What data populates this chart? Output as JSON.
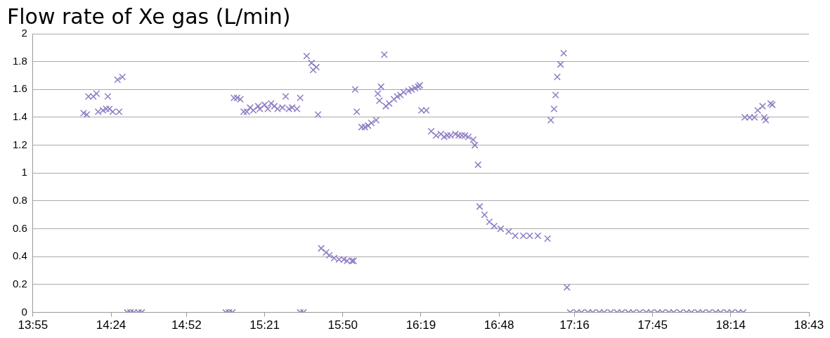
{
  "chart_data": {
    "type": "scatter",
    "title": "Flow rate of Xe gas (L/min)",
    "series": [
      {
        "color": "#8e7cc3",
        "x": [
          14.23,
          14.25,
          14.26,
          14.29,
          14.31,
          14.32,
          14.35,
          14.37,
          14.38,
          14.39,
          14.41,
          14.44,
          14.45,
          14.47,
          14.5,
          14.52,
          14.54,
          14.57,
          14.59,
          15.11,
          15.13,
          15.15,
          15.16,
          15.18,
          15.2,
          15.22,
          15.24,
          15.26,
          15.28,
          15.31,
          15.32,
          15.35,
          15.37,
          15.39,
          15.41,
          15.43,
          15.46,
          15.48,
          15.5,
          15.52,
          15.55,
          15.57,
          15.57,
          15.59,
          15.61,
          15.64,
          15.65,
          15.67,
          15.68,
          15.7,
          15.73,
          15.75,
          15.78,
          15.81,
          15.84,
          15.86,
          15.89,
          15.9,
          15.91,
          15.92,
          15.95,
          15.97,
          15.99,
          16.01,
          16.04,
          16.05,
          16.06,
          16.07,
          16.09,
          16.1,
          16.12,
          16.15,
          16.17,
          16.19,
          16.21,
          16.24,
          16.26,
          16.28,
          16.3,
          16.31,
          16.32,
          16.35,
          16.38,
          16.41,
          16.44,
          16.46,
          16.48,
          16.5,
          16.53,
          16.55,
          16.57,
          16.59,
          16.61,
          16.64,
          16.65,
          16.67,
          16.68,
          16.71,
          16.74,
          16.77,
          16.81,
          16.86,
          16.9,
          16.95,
          16.99,
          17.04,
          17.1,
          17.12,
          17.14,
          17.15,
          17.16,
          17.18,
          17.2,
          17.22,
          17.24,
          17.28,
          17.31,
          17.35,
          17.38,
          17.42,
          17.45,
          17.49,
          17.53,
          17.56,
          17.6,
          17.63,
          17.67,
          17.71,
          17.74,
          17.78,
          17.81,
          17.85,
          17.88,
          17.92,
          17.96,
          17.99,
          18.03,
          18.06,
          18.1,
          18.14,
          18.17,
          18.21,
          18.24,
          18.28,
          18.31,
          18.32,
          18.35,
          18.38,
          18.4,
          18.43,
          18.44,
          18.45,
          18.48,
          18.49
        ],
        "values": [
          1.43,
          1.42,
          1.55,
          1.55,
          1.57,
          1.44,
          1.45,
          1.46,
          1.55,
          1.46,
          1.44,
          1.67,
          1.44,
          1.69,
          0,
          0,
          0,
          0,
          0,
          0,
          0,
          0,
          1.54,
          1.54,
          1.53,
          1.44,
          1.44,
          1.47,
          1.45,
          1.48,
          1.46,
          1.49,
          1.46,
          1.5,
          1.48,
          1.46,
          1.47,
          1.55,
          1.46,
          1.47,
          1.46,
          1.54,
          0,
          0,
          1.84,
          1.79,
          1.74,
          1.76,
          1.42,
          0.46,
          0.43,
          0.41,
          0.39,
          0.38,
          0.38,
          0.37,
          0.37,
          0.37,
          1.6,
          1.44,
          1.33,
          1.33,
          1.34,
          1.36,
          1.38,
          1.57,
          1.52,
          1.62,
          1.85,
          1.48,
          1.5,
          1.53,
          1.55,
          1.56,
          1.58,
          1.59,
          1.6,
          1.61,
          1.62,
          1.63,
          1.45,
          1.45,
          1.3,
          1.27,
          1.28,
          1.26,
          1.27,
          1.27,
          1.28,
          1.27,
          1.27,
          1.27,
          1.26,
          1.24,
          1.2,
          1.06,
          0.76,
          0.7,
          0.65,
          0.62,
          0.6,
          0.58,
          0.55,
          0.55,
          0.55,
          0.55,
          0.53,
          1.38,
          1.46,
          1.56,
          1.69,
          1.78,
          1.86,
          0.18,
          0,
          0,
          0,
          0,
          0,
          0,
          0,
          0,
          0,
          0,
          0,
          0,
          0,
          0,
          0,
          0,
          0,
          0,
          0,
          0,
          0,
          0,
          0,
          0,
          0,
          0,
          0,
          0,
          0,
          0,
          0,
          1.4,
          1.4,
          1.4,
          1.45,
          1.48,
          1.4,
          1.38,
          1.5,
          1.49
        ]
      }
    ],
    "xlim": [
      13.9167,
      18.7167
    ],
    "xticks": [
      {
        "value": 13.9167,
        "label": "13:55"
      },
      {
        "value": 14.4,
        "label": "14:24"
      },
      {
        "value": 14.8667,
        "label": "14:52"
      },
      {
        "value": 15.35,
        "label": "15:21"
      },
      {
        "value": 15.8333,
        "label": "15:50"
      },
      {
        "value": 16.3167,
        "label": "16:19"
      },
      {
        "value": 16.8,
        "label": "16:48"
      },
      {
        "value": 17.2667,
        "label": "17:16"
      },
      {
        "value": 17.75,
        "label": "17:45"
      },
      {
        "value": 18.2333,
        "label": "18:14"
      },
      {
        "value": 18.7167,
        "label": "18:43"
      }
    ],
    "ylim": [
      0,
      2
    ],
    "yticks": [
      0,
      0.2,
      0.4,
      0.6,
      0.8,
      1,
      1.2,
      1.4,
      1.6,
      1.8,
      2
    ],
    "grid": "y",
    "legend": false,
    "marker": "cross"
  }
}
